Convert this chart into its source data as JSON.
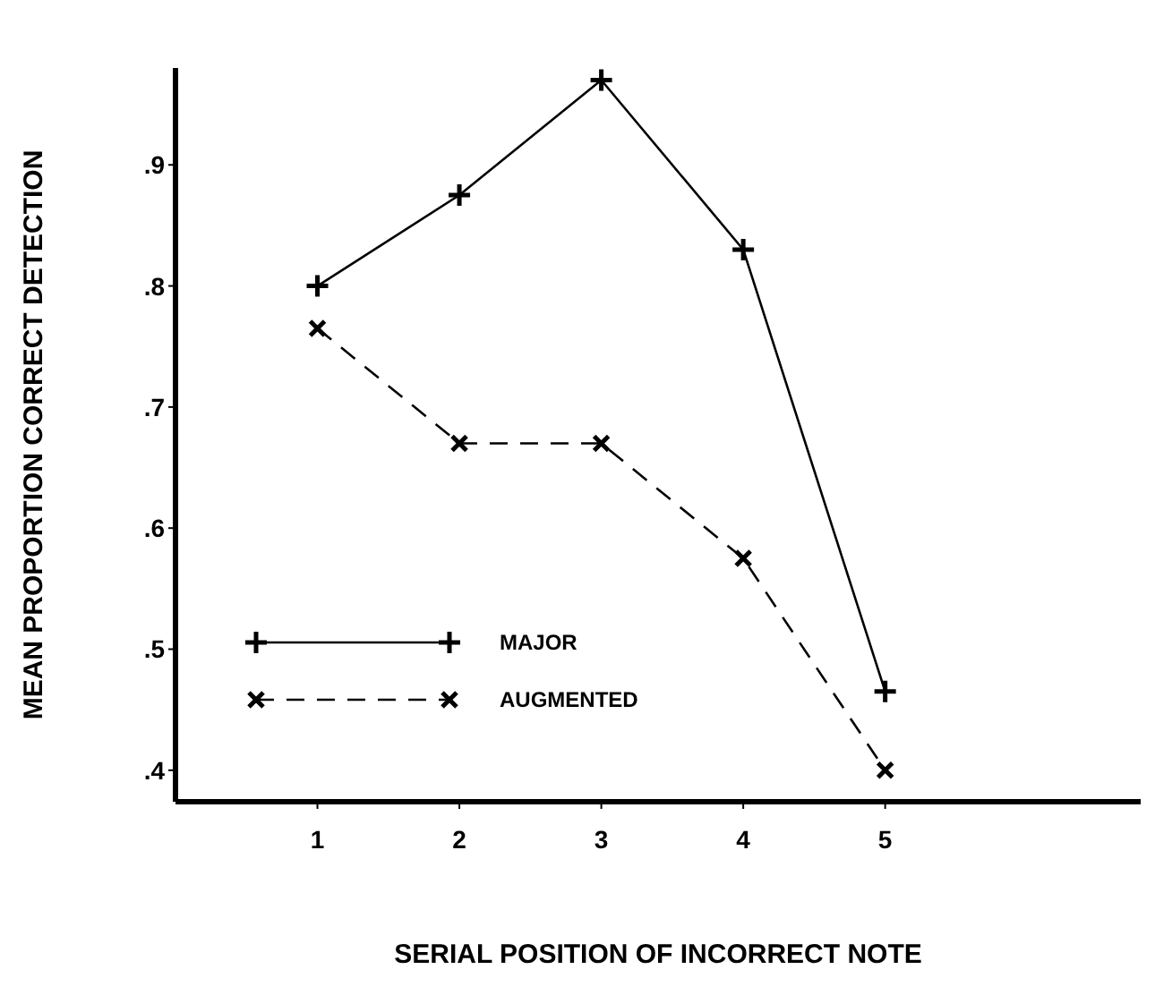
{
  "chart_data": {
    "type": "line",
    "xlabel": "SERIAL POSITION OF INCORRECT NOTE",
    "ylabel": "MEAN PROPORTION CORRECT DETECTION",
    "x": [
      1,
      2,
      3,
      4,
      5
    ],
    "series": [
      {
        "name": "MAJOR",
        "color": "#000000",
        "values": [
          0.8,
          0.875,
          0.97,
          0.83,
          0.465
        ],
        "marker": "plus",
        "line_style": "solid"
      },
      {
        "name": "AUGMENTED",
        "color": "#000000",
        "values": [
          0.765,
          0.67,
          0.67,
          0.575,
          0.4
        ],
        "marker": "cross",
        "line_style": "dashed"
      }
    ],
    "xlim": [
      0,
      6.8
    ],
    "xticks": [
      1,
      2,
      3,
      4,
      5
    ],
    "ylim": [
      0.374,
      0.98
    ],
    "yticks": [
      {
        "value": 0.4,
        "label": ".4"
      },
      {
        "value": 0.5,
        "label": ".5"
      },
      {
        "value": 0.6,
        "label": ".6"
      },
      {
        "value": 0.7,
        "label": ".7"
      },
      {
        "value": 0.8,
        "label": ".8"
      },
      {
        "value": 0.9,
        "label": ".9"
      }
    ],
    "grid": false,
    "legend": "bottom left"
  }
}
